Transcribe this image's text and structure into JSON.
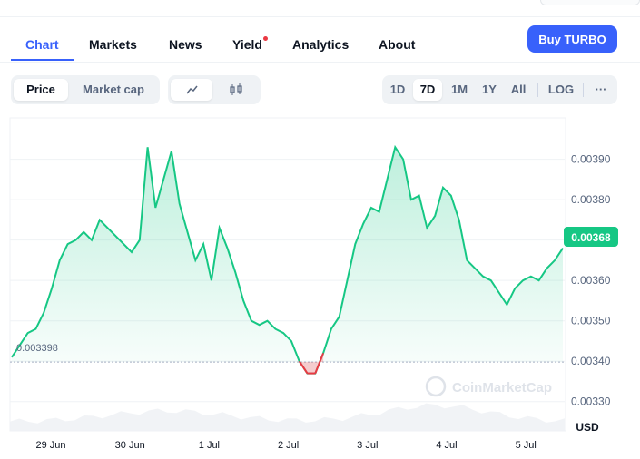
{
  "nav": {
    "tabs": [
      {
        "label": "Chart"
      },
      {
        "label": "Markets"
      },
      {
        "label": "News"
      },
      {
        "label": "Yield"
      },
      {
        "label": "Analytics"
      },
      {
        "label": "About"
      }
    ],
    "buy_label": "Buy TURBO"
  },
  "toolbar": {
    "type_options": [
      "Price",
      "Market cap"
    ],
    "chart_icons": [
      "line-chart-icon",
      "candlestick-icon"
    ],
    "ranges": [
      "1D",
      "7D",
      "1M",
      "1Y",
      "All"
    ],
    "log_label": "LOG",
    "more_label": "···"
  },
  "colors": {
    "up": "#16c784",
    "down": "#ea3943",
    "accent": "#3861fb"
  },
  "chart_data": {
    "type": "line",
    "currency_label": "USD",
    "watermark": "CoinMarketCap",
    "baseline_label": "0.003398",
    "current_label": "0.00368",
    "yticks": [
      "0.00390",
      "0.00380",
      "0.00370",
      "0.00360",
      "0.00350",
      "0.00340",
      "0.00330"
    ],
    "ytick_values": [
      0.0039,
      0.0038,
      0.0037,
      0.0036,
      0.0035,
      0.0034,
      0.0033
    ],
    "xticks": [
      "29 Jun",
      "30 Jun",
      "1 Jul",
      "2 Jul",
      "3 Jul",
      "4 Jul",
      "5 Jul"
    ],
    "ylim": [
      0.00325,
      0.00398
    ],
    "baseline": 0.003398,
    "series": [
      {
        "values": [
          0.00341,
          0.00344,
          0.00347,
          0.00348,
          0.00352,
          0.00358,
          0.00365,
          0.00369,
          0.0037,
          0.00372,
          0.0037,
          0.00375,
          0.00373,
          0.00371,
          0.00369,
          0.00367,
          0.0037,
          0.00393,
          0.00378,
          0.00385,
          0.00392,
          0.00379,
          0.00372,
          0.00365,
          0.00369,
          0.0036,
          0.00373,
          0.00368,
          0.00362,
          0.00355,
          0.0035,
          0.00349,
          0.0035,
          0.00348,
          0.00347,
          0.00345,
          0.0034,
          0.00337,
          0.00337,
          0.00342,
          0.00348,
          0.00351,
          0.0036,
          0.00369,
          0.00374,
          0.00378,
          0.00377,
          0.00385,
          0.00393,
          0.0039,
          0.0038,
          0.00381,
          0.00373,
          0.00376,
          0.00383,
          0.00381,
          0.00375,
          0.00365,
          0.00363,
          0.00361,
          0.0036,
          0.00357,
          0.00354,
          0.00358,
          0.0036,
          0.00361,
          0.0036,
          0.00363,
          0.00365,
          0.00368
        ]
      }
    ]
  }
}
